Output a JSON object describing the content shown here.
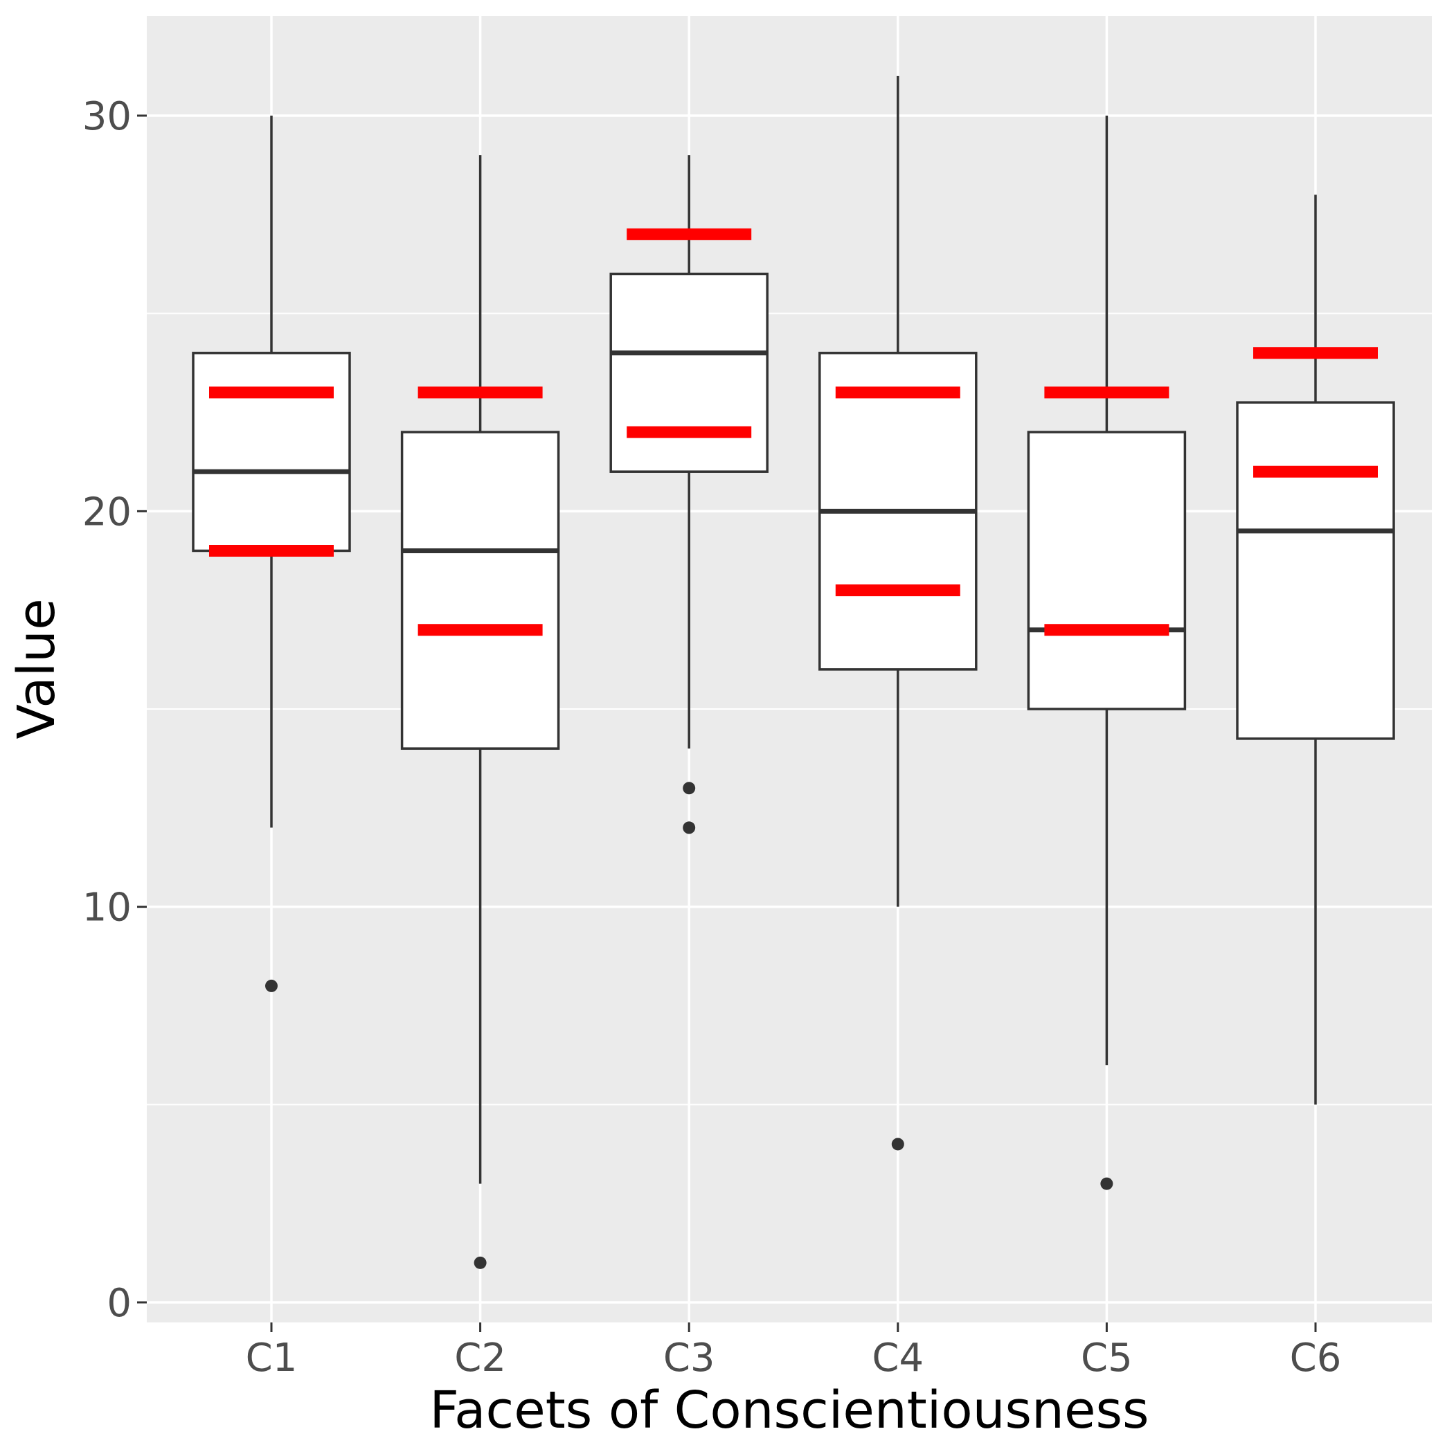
{
  "chart_data": {
    "type": "box",
    "xlabel": "Facets of Conscientiousness",
    "ylabel": "Value",
    "categories": [
      "C1",
      "C2",
      "C3",
      "C4",
      "C5",
      "C6"
    ],
    "ylim": [
      -1,
      32
    ],
    "y_ticks": [
      0,
      10,
      20,
      30
    ],
    "grid": true,
    "legend": "none",
    "boxes": [
      {
        "category": "C1",
        "whisker_low": 12,
        "q1": 19,
        "median": 21,
        "q3": 24,
        "whisker_high": 30,
        "outliers": [
          8
        ],
        "red_marks": [
          19,
          23
        ]
      },
      {
        "category": "C2",
        "whisker_low": 3,
        "q1": 14,
        "median": 19,
        "q3": 22,
        "whisker_high": 29,
        "outliers": [
          1
        ],
        "red_marks": [
          17,
          23
        ]
      },
      {
        "category": "C3",
        "whisker_low": 14,
        "q1": 21,
        "median": 24,
        "q3": 26,
        "whisker_high": 29,
        "outliers": [
          13,
          12
        ],
        "red_marks": [
          22,
          27
        ]
      },
      {
        "category": "C4",
        "whisker_low": 10,
        "q1": 16,
        "median": 20,
        "q3": 24,
        "whisker_high": 31,
        "outliers": [
          4
        ],
        "red_marks": [
          18,
          23
        ]
      },
      {
        "category": "C5",
        "whisker_low": 6,
        "q1": 15,
        "median": 17,
        "q3": 22,
        "whisker_high": 30,
        "outliers": [
          3
        ],
        "red_marks": [
          17,
          23
        ]
      },
      {
        "category": "C6",
        "whisker_low": 5,
        "q1": 14.25,
        "median": 19.5,
        "q3": 22.75,
        "whisker_high": 28,
        "outliers": [],
        "red_marks": [
          21,
          24
        ]
      }
    ],
    "colors": {
      "panel": "#ebebeb",
      "grid": "#ffffff",
      "box_fill": "#ffffff",
      "box_line": "#333333",
      "red_mark": "#ff0000",
      "tick_text": "#4d4d4d"
    }
  }
}
